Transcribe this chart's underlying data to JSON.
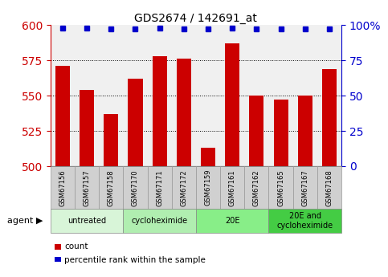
{
  "title": "GDS2674 / 142691_at",
  "samples": [
    "GSM67156",
    "GSM67157",
    "GSM67158",
    "GSM67170",
    "GSM67171",
    "GSM67172",
    "GSM67159",
    "GSM67161",
    "GSM67162",
    "GSM67165",
    "GSM67167",
    "GSM67168"
  ],
  "counts": [
    571,
    554,
    537,
    562,
    578,
    576,
    513,
    587,
    550,
    547,
    550,
    569
  ],
  "percentile_ranks": [
    98,
    98,
    97,
    97,
    98,
    97,
    97,
    98,
    97,
    97,
    97,
    97
  ],
  "ylim_left": [
    500,
    600
  ],
  "ylim_right": [
    0,
    100
  ],
  "yticks_left": [
    500,
    525,
    550,
    575,
    600
  ],
  "yticks_right": [
    0,
    25,
    50,
    75,
    100
  ],
  "bar_color": "#cc0000",
  "dot_color": "#0000cc",
  "groups": [
    {
      "label": "untreated",
      "start": 0,
      "end": 3,
      "color": "#d8f5d8"
    },
    {
      "label": "cycloheximide",
      "start": 3,
      "end": 6,
      "color": "#b0eeb0"
    },
    {
      "label": "20E",
      "start": 6,
      "end": 9,
      "color": "#88ee88"
    },
    {
      "label": "20E and\ncycloheximide",
      "start": 9,
      "end": 12,
      "color": "#44cc44"
    }
  ],
  "legend_count_color": "#cc0000",
  "legend_dot_color": "#0000cc",
  "bg_color": "#ffffff",
  "plot_bg_color": "#f0f0f0",
  "sample_box_color": "#d0d0d0",
  "gridline_color": "#000000",
  "left_spine_color": "#cc0000",
  "right_spine_color": "#0000cc"
}
